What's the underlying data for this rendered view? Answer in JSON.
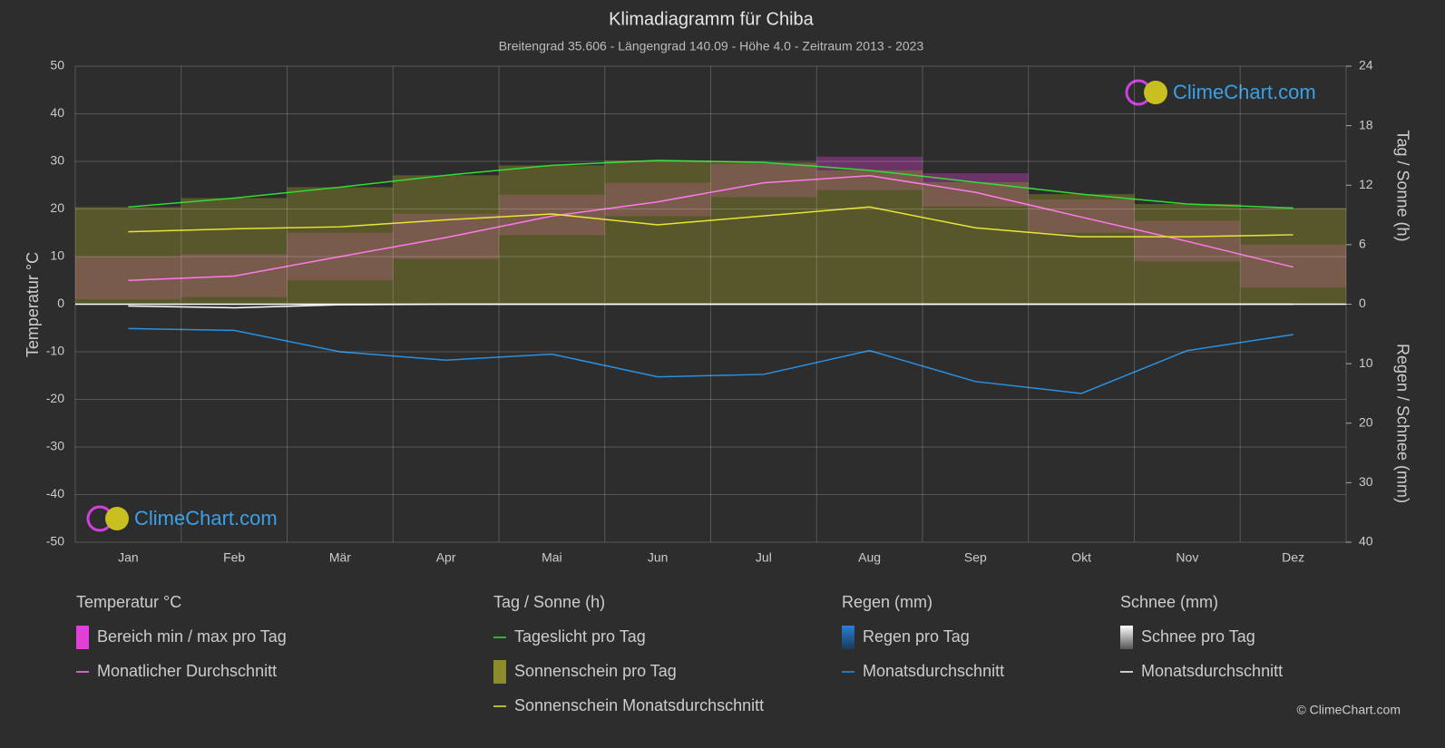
{
  "chart_data": {
    "type": "climate",
    "title": "Klimadiagramm für Chiba",
    "subtitle": "Breitengrad 35.606 - Längengrad 140.09 - Höhe 4.0 - Zeitraum 2013 - 2023",
    "ylabel": "Temperatur °C",
    "y2label": "Tag / Sonne (h)",
    "y3label": "Regen / Schnee (mm)",
    "categories": [
      "Jan",
      "Feb",
      "Mär",
      "Apr",
      "Mai",
      "Jun",
      "Jul",
      "Aug",
      "Sep",
      "Okt",
      "Nov",
      "Dez"
    ],
    "ylim": [
      -50,
      50
    ],
    "yticks": [
      -50,
      -40,
      -30,
      -20,
      -10,
      0,
      10,
      20,
      30,
      40,
      50
    ],
    "y2lim": [
      -24,
      24
    ],
    "y2ticks": [
      0,
      6,
      12,
      18,
      24
    ],
    "y3lim": [
      40,
      -40
    ],
    "y3ticks": [
      10,
      20,
      30,
      40
    ],
    "grid": true,
    "groups": [
      {
        "title": "Temperatur °C",
        "series": [
          {
            "name": "Bereich min / max pro Tag",
            "kind": "range",
            "axis": "y",
            "color": "#e040d8",
            "min": [
              1,
              1.5,
              5,
              9.5,
              14.5,
              18.5,
              22.5,
              24,
              20.5,
              15,
              9,
              3.5
            ],
            "max": [
              10,
              10.5,
              15,
              19,
              23,
              25.5,
              29.5,
              31,
              27.5,
              22,
              17.5,
              12.5
            ]
          },
          {
            "name": "Monatlicher Durchschnitt",
            "kind": "line",
            "axis": "y",
            "color": "#ff7ae8",
            "values": [
              5,
              5.9,
              10,
              14,
              18.5,
              21.5,
              25.5,
              27,
              23.5,
              18.3,
              13.2,
              7.8
            ]
          }
        ]
      },
      {
        "title": "Tag / Sonne (h)",
        "series": [
          {
            "name": "Tageslicht pro Tag",
            "kind": "line",
            "axis": "y2",
            "color": "#33dd33",
            "values": [
              9.8,
              10.7,
              11.8,
              13.0,
              14.0,
              14.5,
              14.3,
              13.5,
              12.3,
              11.1,
              10.1,
              9.7
            ]
          },
          {
            "name": "Sonnenschein pro Tag",
            "kind": "band",
            "color": "#8c8c2a"
          },
          {
            "name": "Sonnenschein Monatsdurchschnitt",
            "kind": "line",
            "axis": "y2",
            "color": "#e6e633",
            "values": [
              7.3,
              7.6,
              7.8,
              8.5,
              9.1,
              8.0,
              8.9,
              9.8,
              7.7,
              6.8,
              6.8,
              7.0
            ]
          }
        ]
      },
      {
        "title": "Regen (mm)",
        "series": [
          {
            "name": "Regen pro Tag",
            "kind": "box",
            "color": "#2a7fd4"
          },
          {
            "name": "Monatsdurchschnitt",
            "kind": "line",
            "axis": "y3",
            "color": "#2a90e0",
            "values": [
              4.1,
              4.4,
              8.0,
              9.4,
              8.4,
              12.2,
              11.8,
              7.8,
              13.0,
              15.0,
              7.8,
              5.1
            ]
          }
        ]
      },
      {
        "title": "Schnee (mm)",
        "series": [
          {
            "name": "Schnee pro Tag",
            "kind": "box",
            "color": "#dddddd"
          },
          {
            "name": "Monatsdurchschnitt",
            "kind": "line",
            "axis": "y3",
            "color": "#ffffff",
            "values": [
              0.3,
              0.6,
              0.1,
              0,
              0,
              0,
              0,
              0,
              0,
              0,
              0,
              0
            ]
          }
        ]
      }
    ],
    "watermark": "ClimeChart.com",
    "copyright": "© ClimeChart.com"
  }
}
